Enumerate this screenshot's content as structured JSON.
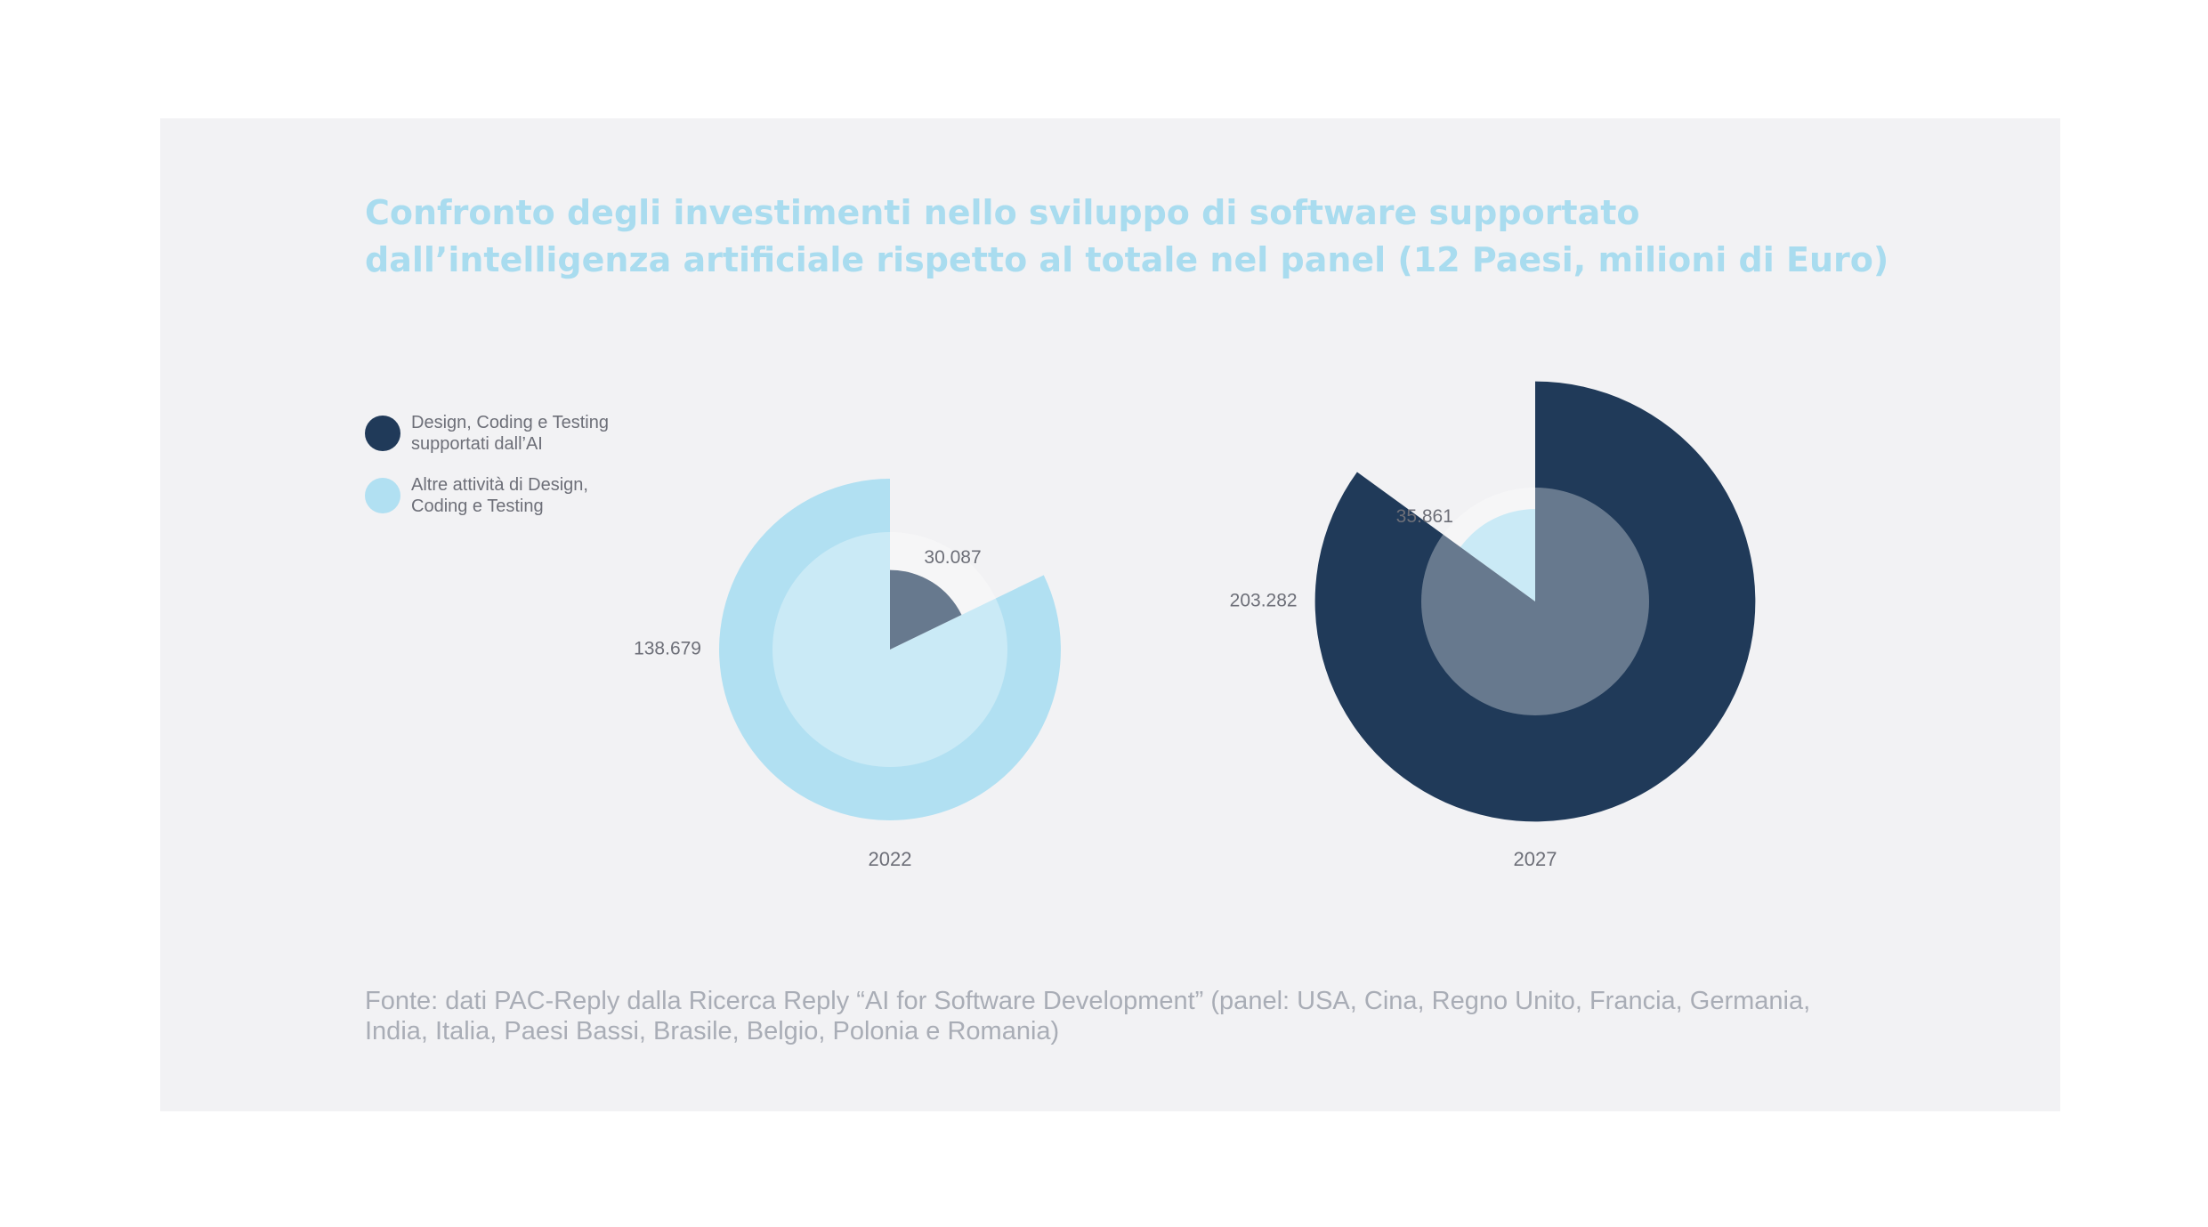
{
  "title": {
    "line1": "Confronto degli investimenti nello sviluppo di software supportato",
    "line2": "dall’intelligenza artificiale rispetto al totale nel panel (12 Paesi, milioni di Euro)"
  },
  "legend": {
    "items": [
      {
        "line1": "Design, Coding e Testing",
        "line2": "supportati dall’AI",
        "color": "#203a59"
      },
      {
        "line1": "Altre attività di Design,",
        "line2": "Coding e Testing",
        "color": "#b1e0f2"
      }
    ]
  },
  "chart_data": {
    "type": "pie",
    "units": "milioni di Euro",
    "series_names": [
      "Design, Coding e Testing supportati dall’AI",
      "Altre attività di Design, Coding e Testing"
    ],
    "colors": {
      "ai": "#203a59",
      "other": "#b1e0f2",
      "inner_overlay": "#ffffff"
    },
    "charts": [
      {
        "year": "2022",
        "ai_value": 30.087,
        "other_value": 138.679,
        "ai_label": "30.087",
        "other_label": "138.679"
      },
      {
        "year": "2027",
        "ai_value": 203.282,
        "other_value": 35.861,
        "ai_label": "203.282",
        "other_label": "35.861"
      }
    ]
  },
  "source": {
    "line1": "Fonte: dati PAC-Reply dalla Ricerca Reply “AI for Software Development” (panel: USA, Cina, Regno Unito, Francia, Germania,",
    "line2": "India, Italia, Paesi Bassi, Brasile, Belgio, Polonia e Romania)"
  }
}
